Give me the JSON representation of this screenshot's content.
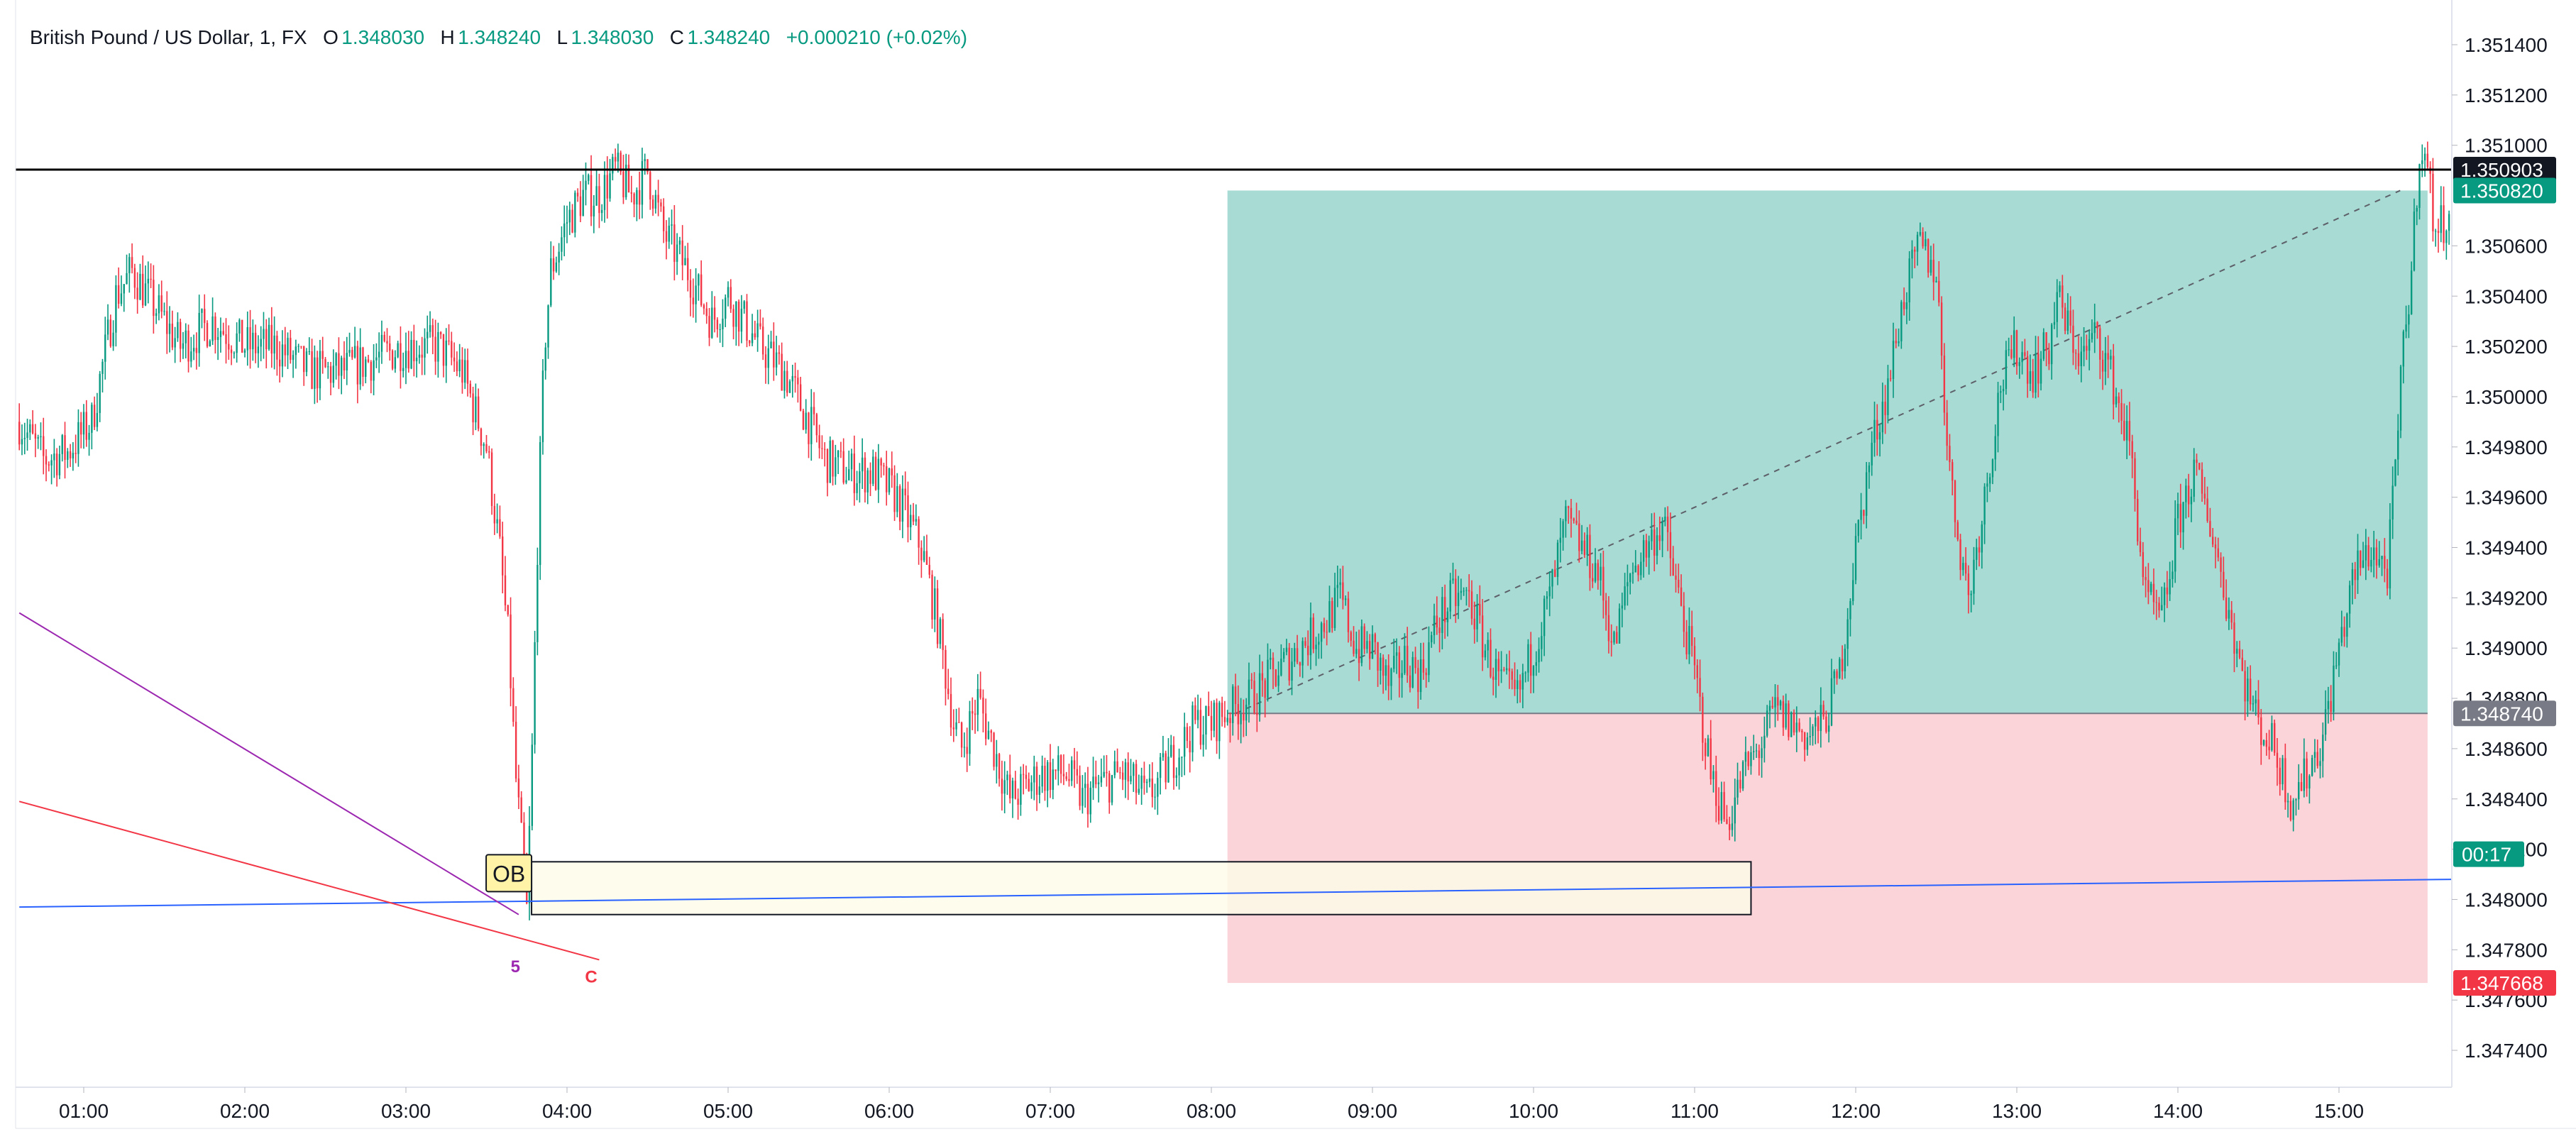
{
  "legend": {
    "symbol": "British Pound / US Dollar, 1, FX",
    "open_label": "O",
    "open": "1.348030",
    "high_label": "H",
    "high": "1.348240",
    "low_label": "L",
    "low": "1.348030",
    "close_label": "C",
    "close": "1.348240",
    "change": "+0.000210 (+0.02%)"
  },
  "colors": {
    "up": "#089981",
    "down": "#f23645",
    "profit_zone": "#a8dbd3",
    "loss_zone": "#fad4d8",
    "ob_fill": "#fdfbe8",
    "ob_label_bg": "#fff3a8",
    "black_line": "#000000",
    "blue_line": "#2962ff",
    "red_line": "#f23645",
    "purple_line": "#9c27b0"
  },
  "chart_data": {
    "type": "candlestick",
    "title": "British Pound / US Dollar, 1, FX",
    "x_ticks": [
      "01:00",
      "02:00",
      "03:00",
      "04:00",
      "05:00",
      "06:00",
      "07:00",
      "08:00",
      "09:00",
      "10:00",
      "11:00",
      "12:00",
      "13:00",
      "14:00",
      "15:00"
    ],
    "x_range_hours": [
      0.6,
      15.7
    ],
    "y_ticks": [
      "1.351400",
      "1.351200",
      "1.351000",
      "1.350600",
      "1.350400",
      "1.350200",
      "1.350000",
      "1.349800",
      "1.349600",
      "1.349400",
      "1.349200",
      "1.349000",
      "1.348800",
      "1.348600",
      "1.348400",
      "1.348200",
      "1.348000",
      "1.347800",
      "1.347600",
      "1.347400"
    ],
    "y_range": [
      1.34725,
      1.3515
    ],
    "grid": false,
    "path": [
      [
        0.6,
        1.3499
      ],
      [
        0.75,
        1.34975
      ],
      [
        0.9,
        1.34978
      ],
      [
        1.05,
        1.3499
      ],
      [
        1.2,
        1.3504
      ],
      [
        1.3,
        1.3505
      ],
      [
        1.4,
        1.3504
      ],
      [
        1.5,
        1.3503
      ],
      [
        1.6,
        1.3502
      ],
      [
        1.8,
        1.3503
      ],
      [
        2.0,
        1.3502
      ],
      [
        2.2,
        1.3502
      ],
      [
        2.4,
        1.3501
      ],
      [
        2.6,
        1.3501
      ],
      [
        2.8,
        1.35015
      ],
      [
        3.0,
        1.3502
      ],
      [
        3.2,
        1.3502
      ],
      [
        3.35,
        1.3501
      ],
      [
        3.5,
        1.3498
      ],
      [
        3.58,
        1.3494
      ],
      [
        3.64,
        1.349
      ],
      [
        3.68,
        1.3485
      ],
      [
        3.72,
        1.3482
      ],
      [
        3.75,
        1.34795
      ],
      [
        3.78,
        1.3485
      ],
      [
        3.82,
        1.3495
      ],
      [
        3.86,
        1.3502
      ],
      [
        3.9,
        1.3505
      ],
      [
        4.0,
        1.3507
      ],
      [
        4.1,
        1.3508
      ],
      [
        4.2,
        1.3508
      ],
      [
        4.3,
        1.3509
      ],
      [
        4.4,
        1.3508
      ],
      [
        4.5,
        1.3509
      ],
      [
        4.6,
        1.35065
      ],
      [
        4.75,
        1.3505
      ],
      [
        4.9,
        1.3503
      ],
      [
        5.0,
        1.3504
      ],
      [
        5.1,
        1.3503
      ],
      [
        5.2,
        1.3502
      ],
      [
        5.35,
        1.3501
      ],
      [
        5.5,
        1.3499
      ],
      [
        5.6,
        1.34975
      ],
      [
        5.75,
        1.3497
      ],
      [
        5.9,
        1.3497
      ],
      [
        6.05,
        1.3496
      ],
      [
        6.2,
        1.3494
      ],
      [
        6.3,
        1.3491
      ],
      [
        6.4,
        1.3487
      ],
      [
        6.45,
        1.3486
      ],
      [
        6.55,
        1.3488
      ],
      [
        6.65,
        1.3486
      ],
      [
        6.75,
        1.3484
      ],
      [
        6.85,
        1.34845
      ],
      [
        6.95,
        1.3485
      ],
      [
        7.1,
        1.3485
      ],
      [
        7.2,
        1.3484
      ],
      [
        7.3,
        1.34845
      ],
      [
        7.45,
        1.3485
      ],
      [
        7.6,
        1.3484
      ],
      [
        7.7,
        1.3485
      ],
      [
        7.8,
        1.3486
      ],
      [
        7.9,
        1.3487
      ],
      [
        8.0,
        1.3487
      ],
      [
        8.1,
        1.34875
      ],
      [
        8.25,
        1.3488
      ],
      [
        8.4,
        1.3489
      ],
      [
        8.55,
        1.349
      ],
      [
        8.7,
        1.3491
      ],
      [
        8.8,
        1.3492
      ],
      [
        8.9,
        1.349
      ],
      [
        9.0,
        1.349
      ],
      [
        9.1,
        1.34885
      ],
      [
        9.2,
        1.34895
      ],
      [
        9.3,
        1.3489
      ],
      [
        9.4,
        1.3491
      ],
      [
        9.5,
        1.3492
      ],
      [
        9.6,
        1.3492
      ],
      [
        9.7,
        1.349
      ],
      [
        9.8,
        1.34885
      ],
      [
        9.9,
        1.3488
      ],
      [
        10.0,
        1.349
      ],
      [
        10.1,
        1.3492
      ],
      [
        10.2,
        1.3495
      ],
      [
        10.3,
        1.3494
      ],
      [
        10.4,
        1.3493
      ],
      [
        10.5,
        1.349
      ],
      [
        10.6,
        1.3493
      ],
      [
        10.7,
        1.3494
      ],
      [
        10.8,
        1.3495
      ],
      [
        10.9,
        1.3492
      ],
      [
        11.0,
        1.3489
      ],
      [
        11.05,
        1.3487
      ],
      [
        11.1,
        1.3485
      ],
      [
        11.2,
        1.3483
      ],
      [
        11.3,
        1.3485
      ],
      [
        11.4,
        1.3486
      ],
      [
        11.5,
        1.34875
      ],
      [
        11.6,
        1.3487
      ],
      [
        11.7,
        1.34865
      ],
      [
        11.8,
        1.3487
      ],
      [
        11.9,
        1.3489
      ],
      [
        12.0,
        1.3494
      ],
      [
        12.1,
        1.3498
      ],
      [
        12.2,
        1.35005
      ],
      [
        12.3,
        1.3504
      ],
      [
        12.4,
        1.3506
      ],
      [
        12.5,
        1.3505
      ],
      [
        12.55,
        1.35
      ],
      [
        12.6,
        1.3496
      ],
      [
        12.7,
        1.3492
      ],
      [
        12.8,
        1.3496
      ],
      [
        12.9,
        1.35005
      ],
      [
        13.0,
        1.3502
      ],
      [
        13.1,
        1.3501
      ],
      [
        13.2,
        1.3502
      ],
      [
        13.25,
        1.3504
      ],
      [
        13.3,
        1.3503
      ],
      [
        13.4,
        1.35015
      ],
      [
        13.5,
        1.35025
      ],
      [
        13.6,
        1.35005
      ],
      [
        13.7,
        1.3498
      ],
      [
        13.75,
        1.3495
      ],
      [
        13.8,
        1.3492
      ],
      [
        13.9,
        1.3491
      ],
      [
        14.0,
        1.3495
      ],
      [
        14.1,
        1.3497
      ],
      [
        14.2,
        1.3495
      ],
      [
        14.3,
        1.3492
      ],
      [
        14.4,
        1.3489
      ],
      [
        14.5,
        1.3487
      ],
      [
        14.6,
        1.3486
      ],
      [
        14.7,
        1.3484
      ],
      [
        14.8,
        1.3485
      ],
      [
        14.9,
        1.34865
      ],
      [
        15.0,
        1.349
      ],
      [
        15.1,
        1.3493
      ],
      [
        15.2,
        1.3494
      ],
      [
        15.3,
        1.3493
      ],
      [
        15.35,
        1.3497
      ],
      [
        15.4,
        1.3502
      ],
      [
        15.45,
        1.3505
      ],
      [
        15.5,
        1.351
      ],
      [
        15.55,
        1.3509
      ],
      [
        15.6,
        1.35065
      ],
      [
        15.65,
        1.3507
      ],
      [
        15.7,
        1.3508
      ]
    ],
    "hlines": [
      {
        "price": 1.350903,
        "label": "1.350903"
      }
    ],
    "position": {
      "type": "long",
      "start_time": 8.1,
      "end_time": 15.55,
      "entry": 1.34874,
      "target": 1.35082,
      "stop": 1.347668,
      "entry_label": "1.348740",
      "target_label": "1.350820",
      "stop_label": "1.347668",
      "progress_from": [
        8.15,
        1.34874
      ],
      "progress_to": [
        15.38,
        1.35082
      ]
    },
    "countdown_label": "00:17",
    "countdown_price": 1.34818,
    "order_block": {
      "label": "OB",
      "start_time": 3.78,
      "end_time": 11.35,
      "top": 1.34815,
      "bottom": 1.34794
    },
    "trendlines": [
      {
        "name": "blue",
        "from": [
          0.6,
          1.34797
        ],
        "to": [
          15.7,
          1.34808
        ]
      },
      {
        "name": "red",
        "from": [
          0.6,
          1.34839
        ],
        "to": [
          4.2,
          1.34776
        ]
      },
      {
        "name": "purple",
        "from": [
          0.6,
          1.34914
        ],
        "to": [
          3.7,
          1.34794
        ]
      }
    ],
    "annotations": [
      {
        "text": "5",
        "time": 3.68,
        "price": 1.34771,
        "color": "purple"
      },
      {
        "text": "C",
        "time": 4.15,
        "price": 1.34767,
        "color": "red"
      }
    ]
  }
}
